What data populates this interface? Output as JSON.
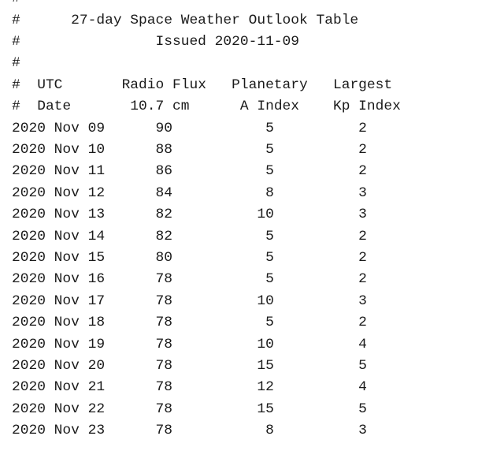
{
  "header": {
    "comment_char": "#",
    "title": "27-day Space Weather Outlook Table",
    "issued": "Issued 2020-11-09",
    "col1_line1": "UTC",
    "col1_line2": "Date",
    "col2_line1": "Radio Flux",
    "col2_line2": "10.7 cm",
    "col3_line1": "Planetary",
    "col3_line2": "A Index",
    "col4_line1": "Largest",
    "col4_line2": "Kp Index"
  },
  "rows": [
    {
      "date": "2020 Nov 09",
      "flux": "90",
      "a_index": "5",
      "kp": "2"
    },
    {
      "date": "2020 Nov 10",
      "flux": "88",
      "a_index": "5",
      "kp": "2"
    },
    {
      "date": "2020 Nov 11",
      "flux": "86",
      "a_index": "5",
      "kp": "2"
    },
    {
      "date": "2020 Nov 12",
      "flux": "84",
      "a_index": "8",
      "kp": "3"
    },
    {
      "date": "2020 Nov 13",
      "flux": "82",
      "a_index": "10",
      "kp": "3"
    },
    {
      "date": "2020 Nov 14",
      "flux": "82",
      "a_index": "5",
      "kp": "2"
    },
    {
      "date": "2020 Nov 15",
      "flux": "80",
      "a_index": "5",
      "kp": "2"
    },
    {
      "date": "2020 Nov 16",
      "flux": "78",
      "a_index": "5",
      "kp": "2"
    },
    {
      "date": "2020 Nov 17",
      "flux": "78",
      "a_index": "10",
      "kp": "3"
    },
    {
      "date": "2020 Nov 18",
      "flux": "78",
      "a_index": "5",
      "kp": "2"
    },
    {
      "date": "2020 Nov 19",
      "flux": "78",
      "a_index": "10",
      "kp": "4"
    },
    {
      "date": "2020 Nov 20",
      "flux": "78",
      "a_index": "15",
      "kp": "5"
    },
    {
      "date": "2020 Nov 21",
      "flux": "78",
      "a_index": "12",
      "kp": "4"
    },
    {
      "date": "2020 Nov 22",
      "flux": "78",
      "a_index": "15",
      "kp": "5"
    },
    {
      "date": "2020 Nov 23",
      "flux": "78",
      "a_index": "8",
      "kp": "3"
    }
  ]
}
